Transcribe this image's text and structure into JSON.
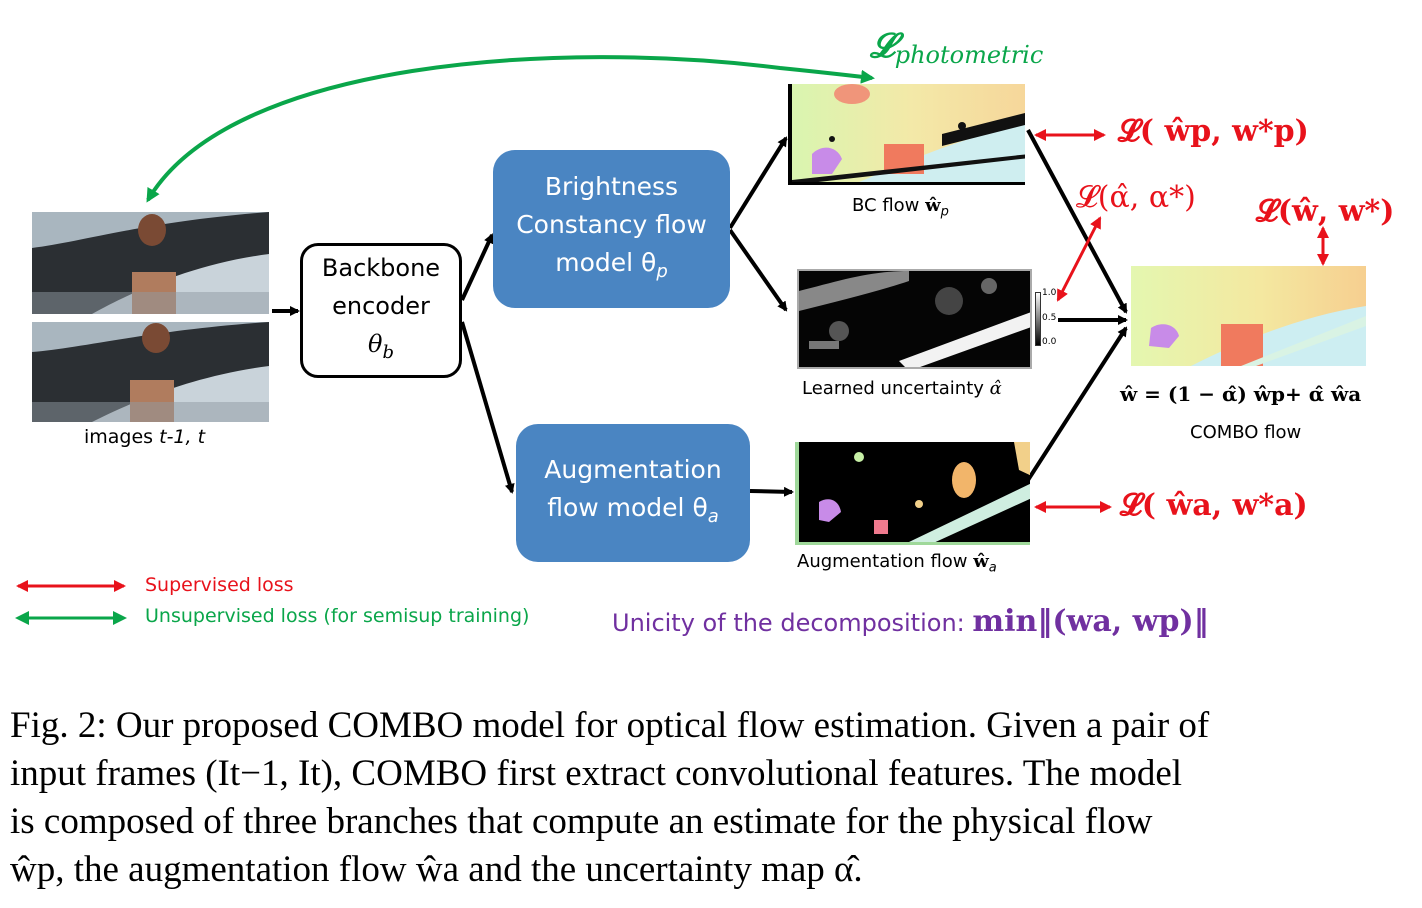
{
  "labels": {
    "photometric": "𝓛photometric",
    "photometric_main": "𝓛",
    "photometric_sub": "photometric",
    "images": "images ",
    "images_frames": "t-1, t",
    "backbone_l1": "Backbone",
    "backbone_l2": "encoder",
    "backbone_l3": "θ",
    "backbone_sub": "b",
    "bc_l1": "Brightness",
    "bc_l2": "Constancy flow",
    "bc_l3": "model  θ",
    "bc_sub": "p",
    "aug_l1": "Augmentation",
    "aug_l2": "flow model θ",
    "aug_sub": "a",
    "bc_flow": "BC flow ",
    "bc_flow_sym": "ŵ",
    "bc_flow_sub": "p",
    "uncertainty": "Learned uncertainty ",
    "uncertainty_sym": "α̂",
    "aug_flow": "Augmentation flow ",
    "aug_flow_sym": "ŵ",
    "aug_flow_sub": "a",
    "combo_formula": "ŵ = (1 − α̂) ŵp+ α̂ ŵa",
    "combo_flow": "COMBO flow",
    "scale_top": "1.0",
    "scale_mid": "0.5",
    "scale_bot": "0.0"
  },
  "losses": {
    "bc_loss": "𝓛( ŵp, w*p)",
    "alpha_loss": "𝓛(α̂, α*)",
    "combo_loss": "𝓛(ŵ, w*)",
    "aug_loss": "𝓛( ŵa, w*a)"
  },
  "legend": {
    "supervised": "Supervised loss",
    "unsupervised": "Unsupervised loss (for semisup training)"
  },
  "unicity": {
    "text": "Unicity of the decomposition: ",
    "formula": "min‖(wa, wp)‖"
  },
  "caption": {
    "line1": "Fig. 2: Our proposed COMBO model for optical flow estimation. Given a pair of",
    "line2": "input frames (It−1, It), COMBO first extract convolutional features. The model",
    "line3": "is composed of three branches that compute an estimate for the physical flow",
    "line4": "ŵp, the augmentation flow ŵa and the uncertainty map α̂."
  },
  "colors": {
    "block_blue": "#4a85c2",
    "supervised_red": "#e8121b",
    "unsupervised_green": "#0aa64a",
    "unicity_purple": "#7030a0"
  }
}
